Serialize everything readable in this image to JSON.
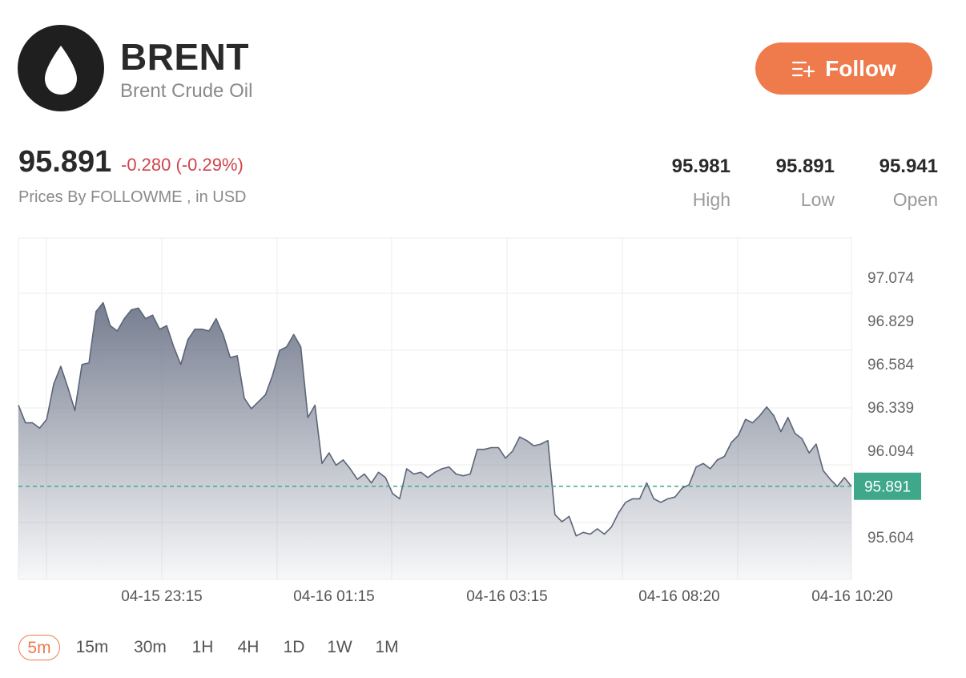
{
  "header": {
    "symbol": "BRENT",
    "name": "Brent Crude Oil",
    "follow_label": "Follow"
  },
  "quote": {
    "price": "95.891",
    "change": "-0.280 (-0.29%)",
    "source": "Prices By FOLLOWME , in USD",
    "stats": [
      {
        "value": "95.981",
        "label": "High"
      },
      {
        "value": "95.891",
        "label": "Low"
      },
      {
        "value": "95.941",
        "label": "Open"
      }
    ]
  },
  "colors": {
    "accent": "#ef7a4b",
    "negative": "#d0454c",
    "current_tag": "#3fa88a",
    "line": "#5b6478"
  },
  "timeframes": [
    "5m",
    "15m",
    "30m",
    "1H",
    "4H",
    "1D",
    "1W",
    "1M"
  ],
  "active_timeframe": "5m",
  "chart_data": {
    "type": "area",
    "current_price": 95.891,
    "current_price_label": "95.891",
    "y_ticks": [
      97.074,
      96.829,
      96.584,
      96.339,
      96.094,
      95.604
    ],
    "y_tick_labels": [
      "97.074",
      "96.829",
      "96.584",
      "96.339",
      "96.094",
      "95.604"
    ],
    "x_tick_labels": [
      "04-15 23:15",
      "04-16 01:15",
      "04-16 03:15",
      "04-16 08:20",
      "04-16 10:20"
    ],
    "grid": true,
    "values": [
      96.35,
      96.25,
      96.25,
      96.22,
      96.27,
      96.47,
      96.57,
      96.45,
      96.32,
      96.58,
      96.59,
      96.88,
      96.93,
      96.8,
      96.77,
      96.84,
      96.89,
      96.9,
      96.84,
      96.86,
      96.78,
      96.8,
      96.68,
      96.58,
      96.72,
      96.78,
      96.78,
      96.77,
      96.84,
      96.75,
      96.62,
      96.63,
      96.39,
      96.33,
      96.37,
      96.41,
      96.52,
      96.66,
      96.68,
      96.75,
      96.68,
      96.28,
      96.35,
      96.02,
      96.08,
      96.01,
      96.04,
      95.99,
      95.93,
      95.96,
      95.91,
      95.97,
      95.94,
      95.85,
      95.82,
      95.99,
      95.96,
      95.97,
      95.94,
      95.97,
      95.99,
      96.0,
      95.96,
      95.95,
      95.96,
      96.1,
      96.1,
      96.11,
      96.11,
      96.05,
      96.09,
      96.17,
      96.15,
      96.12,
      96.13,
      96.15,
      95.73,
      95.69,
      95.72,
      95.61,
      95.63,
      95.62,
      95.65,
      95.62,
      95.66,
      95.74,
      95.8,
      95.82,
      95.82,
      95.91,
      95.82,
      95.8,
      95.82,
      95.83,
      95.88,
      95.9,
      96.0,
      96.02,
      95.99,
      96.04,
      96.06,
      96.14,
      96.18,
      96.27,
      96.25,
      96.29,
      96.34,
      96.29,
      96.2,
      96.28,
      96.19,
      96.16,
      96.08,
      96.13,
      95.98,
      95.93,
      95.89,
      95.94,
      95.89
    ]
  }
}
